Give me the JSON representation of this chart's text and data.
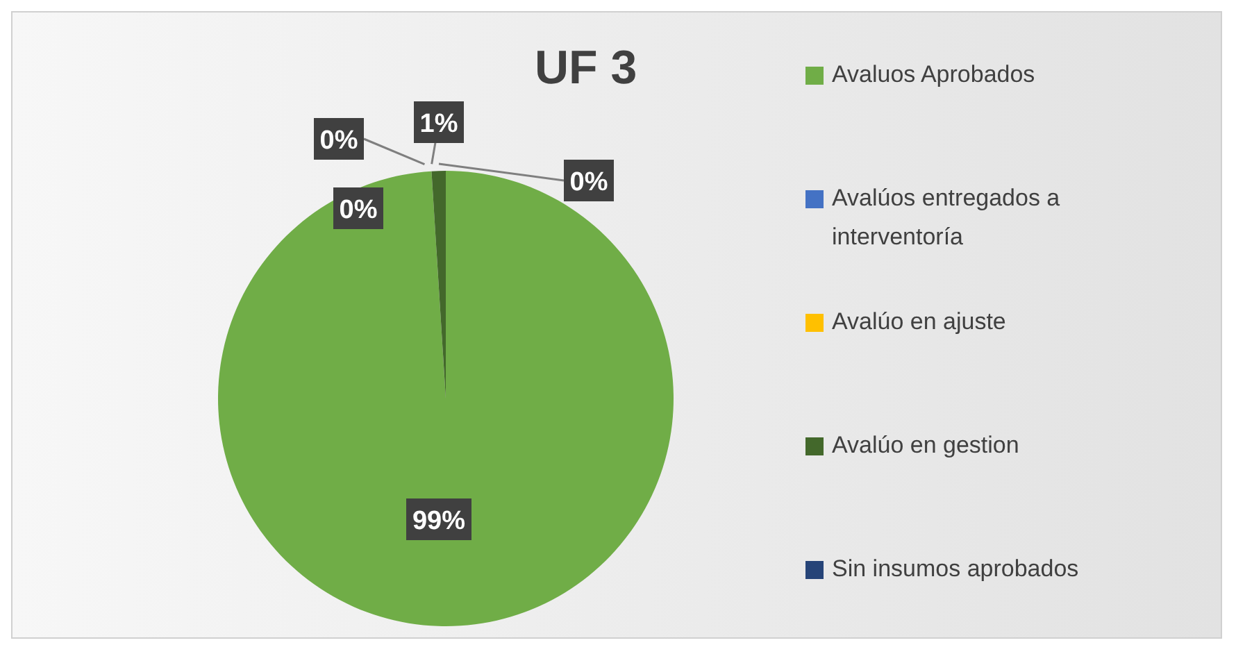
{
  "chart_data": {
    "type": "pie",
    "title": "UF 3",
    "categories": [
      "Avaluos Aprobados",
      "Avalúos entregados a interventoría",
      "Avalúo en ajuste",
      "Avalúo en gestion",
      "Sin insumos aprobados"
    ],
    "values": [
      99,
      0,
      0,
      1,
      0
    ],
    "colors": [
      "#70ad47",
      "#4472c4",
      "#ffc000",
      "#43682b",
      "#264478"
    ],
    "value_labels": [
      "99%",
      "0%",
      "0%",
      "1%",
      "0%"
    ],
    "legend": "right"
  }
}
